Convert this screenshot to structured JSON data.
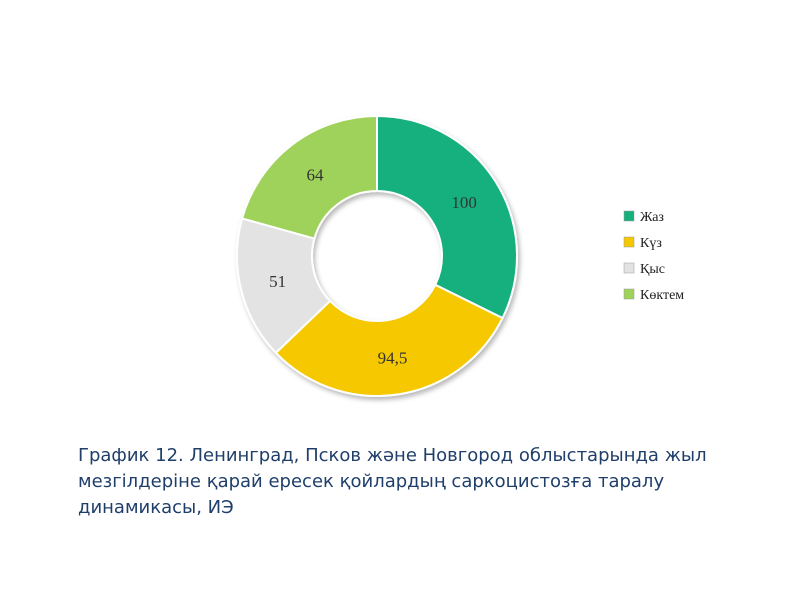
{
  "chart_data": {
    "type": "pie",
    "categories": [
      "Жаз",
      "Күз",
      "Қыс",
      "Көктем"
    ],
    "values": [
      100,
      94.5,
      51,
      64
    ],
    "value_labels": [
      "100",
      "94,5",
      "51",
      "64"
    ],
    "colors": [
      "#16b07f",
      "#f5c800",
      "#e3e3e3",
      "#9fd25a"
    ],
    "donut": true,
    "legend_position": "right",
    "title": "График 12. Ленинград, Псков және Новгород облыстарында жыл мезгілдеріне қарай ересек қойлардың саркоцистозға таралу динамикасы, ИЭ"
  }
}
